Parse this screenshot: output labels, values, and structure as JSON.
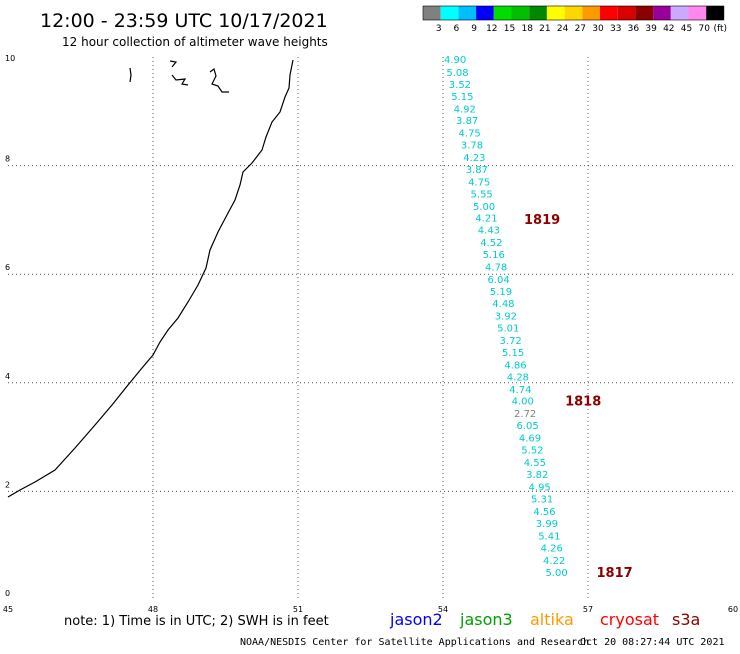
{
  "header": {
    "title": "12:00 - 23:59 UTC 10/17/2021",
    "subtitle": "12 hour collection of altimeter wave heights"
  },
  "legend": {
    "unit": "(ft)",
    "bins": [
      {
        "label": "3",
        "color": "#808080"
      },
      {
        "label": "6",
        "color": "#00ffff"
      },
      {
        "label": "9",
        "color": "#00bfff"
      },
      {
        "label": "12",
        "color": "#0000ff"
      },
      {
        "label": "15",
        "color": "#00dd00"
      },
      {
        "label": "18",
        "color": "#00c000"
      },
      {
        "label": "21",
        "color": "#008800"
      },
      {
        "label": "24",
        "color": "#ffff00"
      },
      {
        "label": "27",
        "color": "#ffd700"
      },
      {
        "label": "30",
        "color": "#ff9900"
      },
      {
        "label": "33",
        "color": "#ff0000"
      },
      {
        "label": "36",
        "color": "#d80000"
      },
      {
        "label": "39",
        "color": "#8b0000"
      },
      {
        "label": "42",
        "color": "#990099"
      },
      {
        "label": "45",
        "color": "#ccaaff"
      },
      {
        "label": "70",
        "color": "#ff88ee"
      },
      {
        "label": "",
        "color": "#000000"
      }
    ]
  },
  "map": {
    "lon_ticks": [
      "45",
      "48",
      "51",
      "54",
      "57",
      "60"
    ],
    "lat_ticks": [
      "0",
      "2",
      "4",
      "6",
      "8",
      "10"
    ]
  },
  "track": {
    "color": "#00cccc",
    "gray_color": "#808080",
    "points": [
      {
        "lon": 54.25,
        "lat": 9.96,
        "v": "4.90"
      },
      {
        "lon": 54.3,
        "lat": 9.72,
        "v": "5.08"
      },
      {
        "lon": 54.35,
        "lat": 9.5,
        "v": "3.52"
      },
      {
        "lon": 54.4,
        "lat": 9.28,
        "v": "5.15"
      },
      {
        "lon": 54.45,
        "lat": 9.05,
        "v": "4.92"
      },
      {
        "lon": 54.5,
        "lat": 8.84,
        "v": "3.87"
      },
      {
        "lon": 54.55,
        "lat": 8.61,
        "v": "4.75"
      },
      {
        "lon": 54.6,
        "lat": 8.39,
        "v": "3.78"
      },
      {
        "lon": 54.65,
        "lat": 8.16,
        "v": "4.23"
      },
      {
        "lon": 54.7,
        "lat": 7.94,
        "v": "3.87"
      },
      {
        "lon": 54.75,
        "lat": 7.71,
        "v": "4.75"
      },
      {
        "lon": 54.8,
        "lat": 7.49,
        "v": "5.55"
      },
      {
        "lon": 54.85,
        "lat": 7.26,
        "v": "5.00"
      },
      {
        "lon": 54.9,
        "lat": 7.04,
        "v": "4.21"
      },
      {
        "lon": 54.95,
        "lat": 6.82,
        "v": "4.43"
      },
      {
        "lon": 55.0,
        "lat": 6.59,
        "v": "4.52"
      },
      {
        "lon": 55.05,
        "lat": 6.37,
        "v": "5.16"
      },
      {
        "lon": 55.1,
        "lat": 6.14,
        "v": "4.78"
      },
      {
        "lon": 55.15,
        "lat": 5.91,
        "v": "6.04"
      },
      {
        "lon": 55.2,
        "lat": 5.69,
        "v": "5.19"
      },
      {
        "lon": 55.25,
        "lat": 5.47,
        "v": "4.48"
      },
      {
        "lon": 55.3,
        "lat": 5.24,
        "v": "3.92"
      },
      {
        "lon": 55.35,
        "lat": 5.02,
        "v": "5.01"
      },
      {
        "lon": 55.4,
        "lat": 4.79,
        "v": "3.72"
      },
      {
        "lon": 55.45,
        "lat": 4.57,
        "v": "5.15"
      },
      {
        "lon": 55.5,
        "lat": 4.34,
        "v": "4.86"
      },
      {
        "lon": 55.55,
        "lat": 4.12,
        "v": "4.28"
      },
      {
        "lon": 55.6,
        "lat": 3.89,
        "v": "4.74"
      },
      {
        "lon": 55.65,
        "lat": 3.67,
        "v": "4.00"
      },
      {
        "lon": 55.7,
        "lat": 3.44,
        "v": "2.72",
        "gray": true
      },
      {
        "lon": 55.75,
        "lat": 3.22,
        "v": "6.05"
      },
      {
        "lon": 55.8,
        "lat": 2.99,
        "v": "4.69"
      },
      {
        "lon": 55.85,
        "lat": 2.77,
        "v": "5.52"
      },
      {
        "lon": 55.9,
        "lat": 2.54,
        "v": "4.55"
      },
      {
        "lon": 55.95,
        "lat": 2.32,
        "v": "3.82"
      },
      {
        "lon": 56.0,
        "lat": 2.09,
        "v": "4.95"
      },
      {
        "lon": 56.05,
        "lat": 1.87,
        "v": "5.31"
      },
      {
        "lon": 56.1,
        "lat": 1.64,
        "v": "4.56"
      },
      {
        "lon": 56.15,
        "lat": 1.42,
        "v": "3.99"
      },
      {
        "lon": 56.2,
        "lat": 1.19,
        "v": "5.41"
      },
      {
        "lon": 56.25,
        "lat": 0.97,
        "v": "4.26"
      },
      {
        "lon": 56.3,
        "lat": 0.74,
        "v": "4.22"
      },
      {
        "lon": 56.35,
        "lat": 0.52,
        "v": "5.00"
      }
    ]
  },
  "times": [
    {
      "label": "1819",
      "lon": 56.05,
      "lat": 7.02
    },
    {
      "label": "1818",
      "lon": 56.9,
      "lat": 3.67
    },
    {
      "label": "1817",
      "lon": 57.55,
      "lat": 0.52
    }
  ],
  "satellites": [
    {
      "name": "jason2",
      "color": "#0000ff"
    },
    {
      "name": "jason3",
      "color": "#00a000"
    },
    {
      "name": "altika",
      "color": "#ff9900"
    },
    {
      "name": "cryosat",
      "color": "#ff0000"
    },
    {
      "name": "s3a",
      "color": "#8b0000"
    }
  ],
  "footer": {
    "note": "note: 1) Time is in UTC; 2) SWH is in feet",
    "credit": "NOAA/NESDIS Center for Satellite Applications and Research",
    "timestamp": "Oct 20 08:27:44 UTC 2021"
  }
}
